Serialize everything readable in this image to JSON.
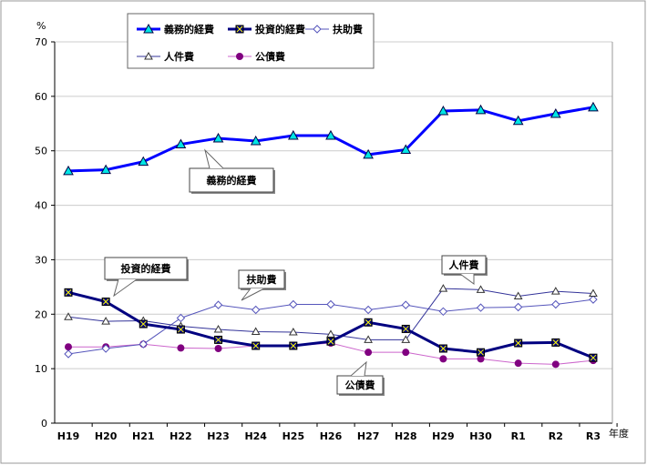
{
  "chart_data": {
    "type": "line",
    "ylabel": "%",
    "xlabel": "年度",
    "ylim": [
      0,
      70
    ],
    "yticks": [
      0,
      10,
      20,
      30,
      40,
      50,
      60,
      70
    ],
    "grid": true,
    "legend": "top-left",
    "categories": [
      "H19",
      "H20",
      "H21",
      "H22",
      "H23",
      "H24",
      "H25",
      "H26",
      "H27",
      "H28",
      "H29",
      "H30",
      "R1",
      "R2",
      "R3"
    ],
    "series": [
      {
        "name": "義務的経費",
        "color": "#0000ff",
        "marker": "triangle-filled",
        "values": [
          46.3,
          46.5,
          48.0,
          51.2,
          52.3,
          51.8,
          52.8,
          52.8,
          49.3,
          50.2,
          57.3,
          57.5,
          55.5,
          56.8,
          58.0
        ]
      },
      {
        "name": "投資的経費",
        "color": "#000080",
        "marker": "square-x",
        "values": [
          24.0,
          22.3,
          18.2,
          17.2,
          15.3,
          14.2,
          14.2,
          15.0,
          18.5,
          17.3,
          13.7,
          13.0,
          14.7,
          14.8,
          12.0
        ]
      },
      {
        "name": "扶助費",
        "color": "#5555bb",
        "marker": "diamond-open",
        "values": [
          12.7,
          13.7,
          14.5,
          19.3,
          21.7,
          20.8,
          21.8,
          21.8,
          20.8,
          21.7,
          20.5,
          21.2,
          21.3,
          21.8,
          22.7
        ]
      },
      {
        "name": "人件費",
        "color": "#333399",
        "marker": "triangle-open",
        "values": [
          19.5,
          18.7,
          18.8,
          17.8,
          17.2,
          16.8,
          16.7,
          16.3,
          15.3,
          15.3,
          24.7,
          24.5,
          23.3,
          24.2,
          23.8
        ]
      },
      {
        "name": "公債費",
        "color": "#cc66cc",
        "marker": "circle-purple",
        "values": [
          14.0,
          14.0,
          14.5,
          13.8,
          13.7,
          14.2,
          14.2,
          14.7,
          13.0,
          13.0,
          11.8,
          11.8,
          11.0,
          10.8,
          11.5
        ]
      }
    ],
    "annotations": [
      "義務的経費",
      "投資的経費",
      "扶助費",
      "人件費",
      "公債費"
    ]
  }
}
